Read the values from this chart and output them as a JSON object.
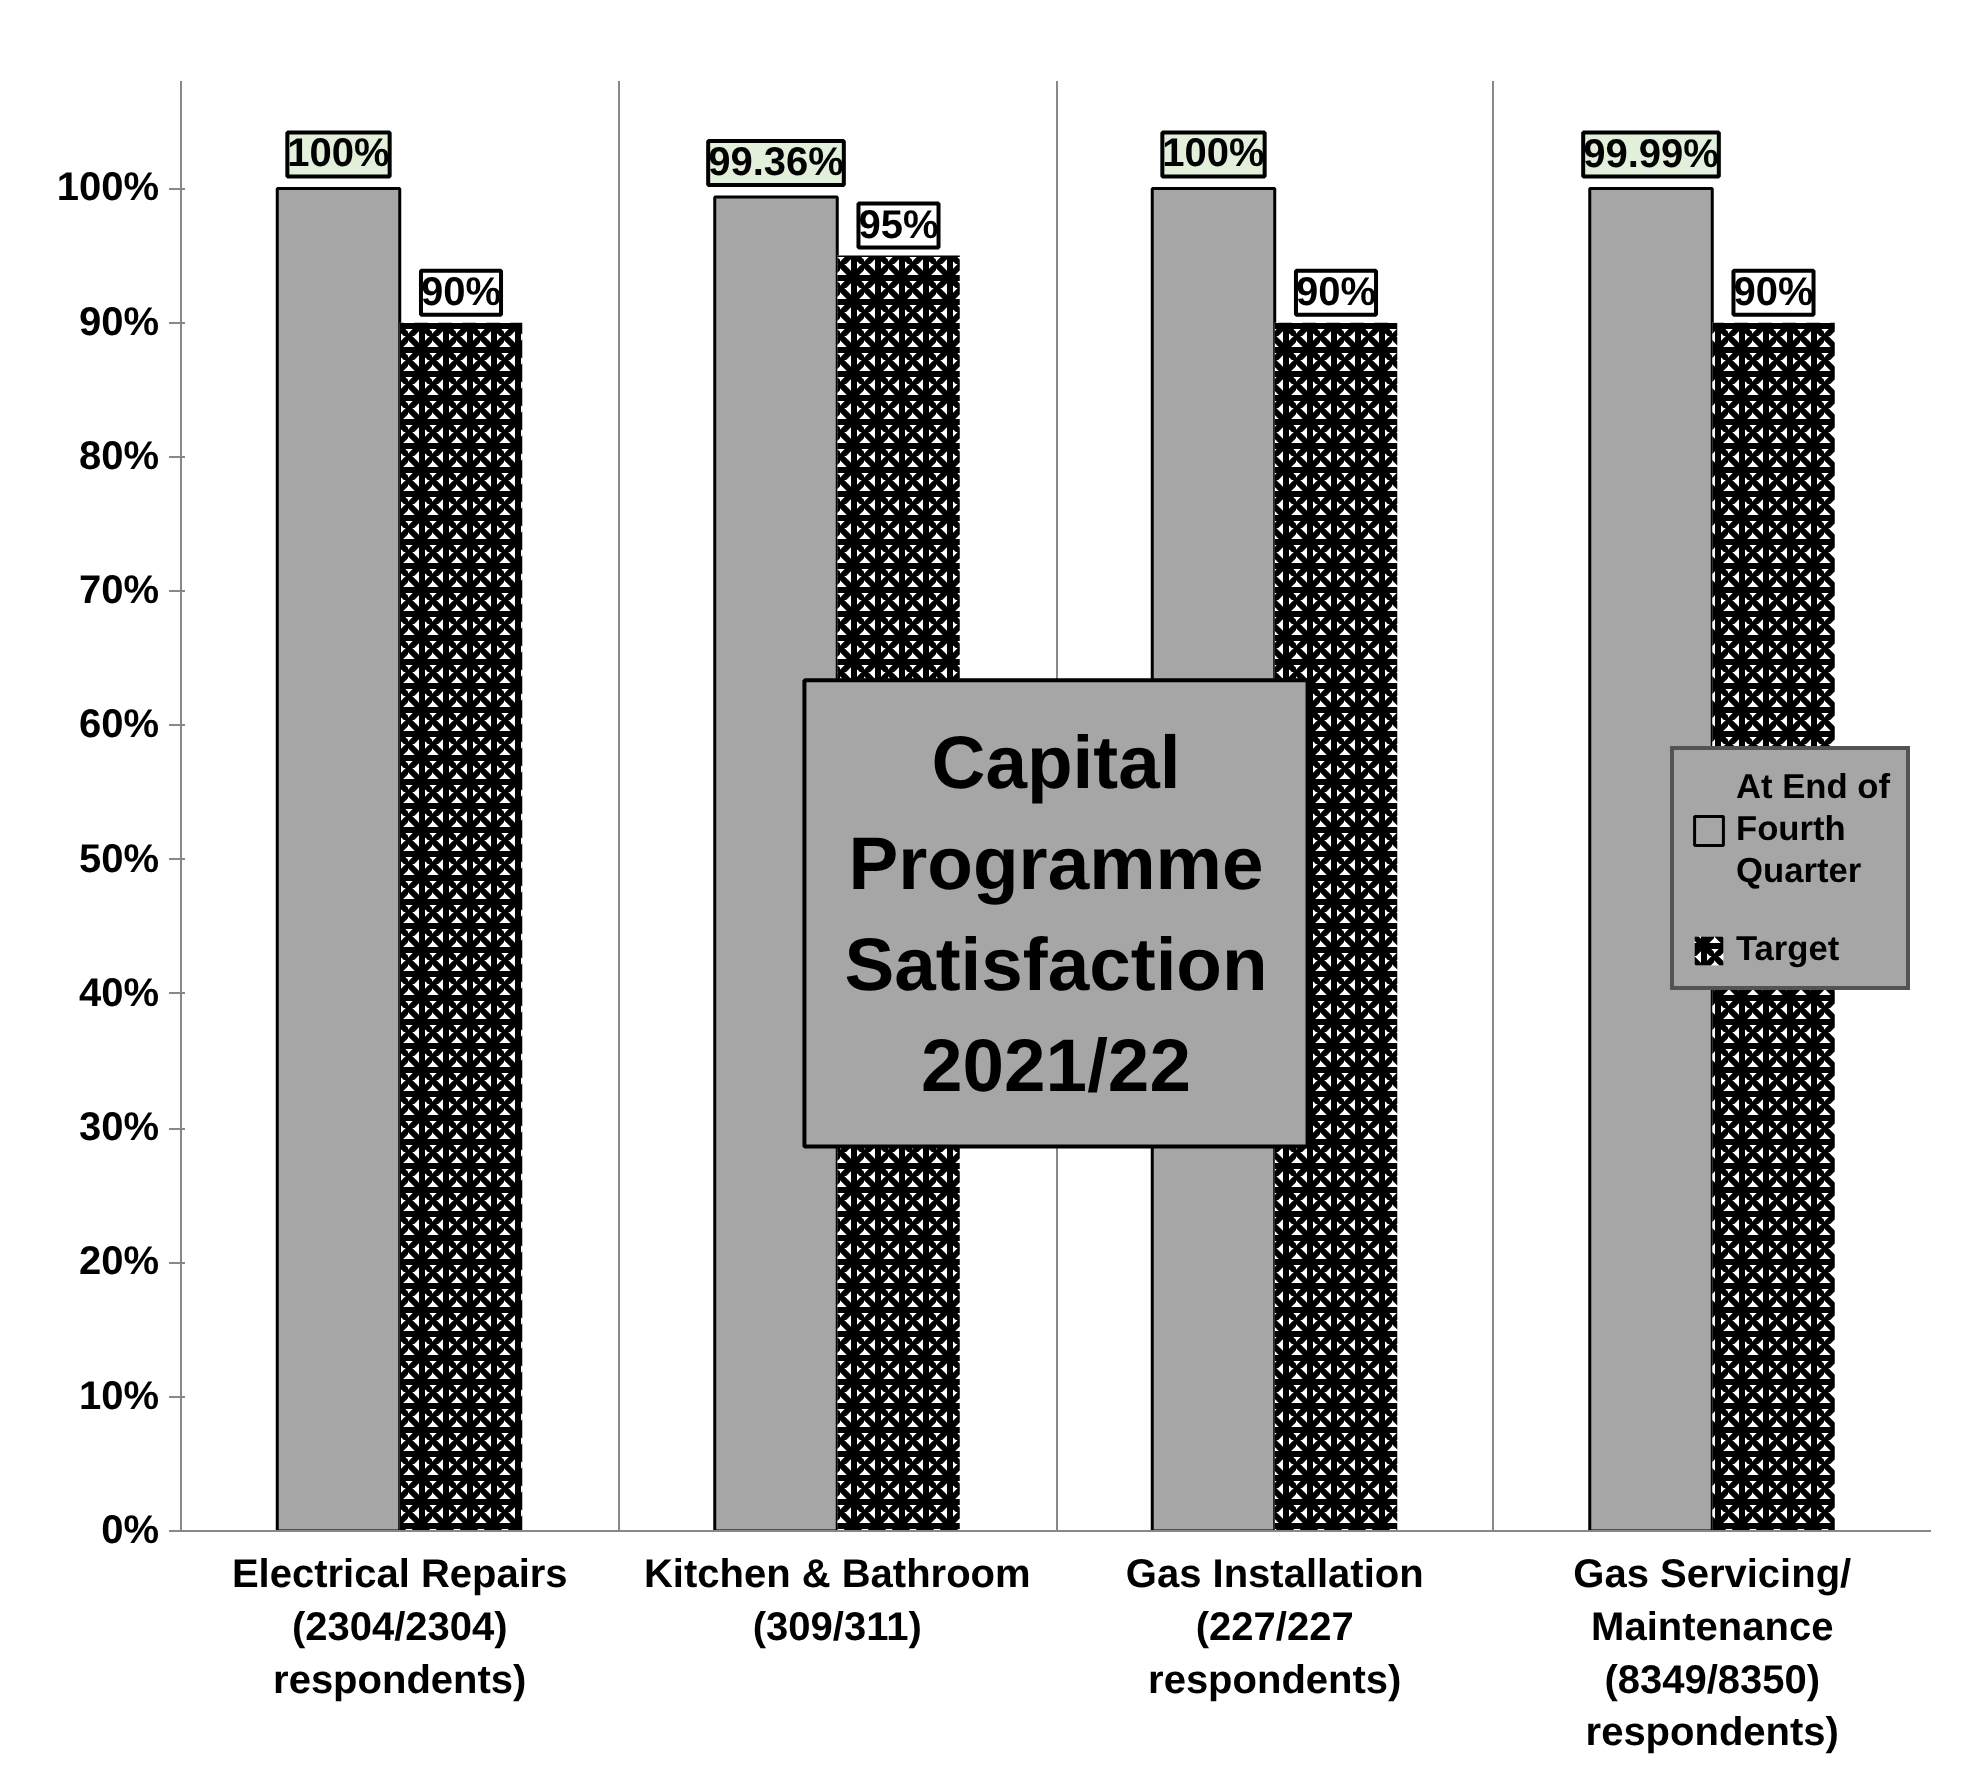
{
  "chart_data": {
    "type": "bar",
    "title": "Capital Programme Satisfaction 2021/22",
    "categories": [
      "Electrical Repairs (2304/2304) respondents)",
      "Kitchen & Bathroom (309/311)",
      "Gas Installation (227/227 respondents)",
      "Gas Servicing/ Maintenance (8349/8350) respondents)"
    ],
    "series": [
      {
        "name": "At End of Fourth Quarter",
        "color": "#a6a6a6",
        "values": [
          100,
          99.36,
          100,
          99.99
        ],
        "value_labels": [
          "100%",
          "99.36%",
          "100%",
          "99.99%"
        ]
      },
      {
        "name": "Target",
        "color": "#ffffff",
        "values": [
          90,
          95,
          90,
          90
        ],
        "value_labels": [
          "90%",
          "95%",
          "90%",
          "90%"
        ]
      }
    ],
    "ylim": [
      0,
      108
    ],
    "yticks": [
      {
        "value": 0,
        "label": "0%"
      },
      {
        "value": 10,
        "label": "10%"
      },
      {
        "value": 20,
        "label": "20%"
      },
      {
        "value": 30,
        "label": "30%"
      },
      {
        "value": 40,
        "label": "40%"
      },
      {
        "value": 50,
        "label": "50%"
      },
      {
        "value": 60,
        "label": "60%"
      },
      {
        "value": 70,
        "label": "70%"
      },
      {
        "value": 80,
        "label": "80%"
      },
      {
        "value": 90,
        "label": "90%"
      },
      {
        "value": 100,
        "label": "100%"
      }
    ],
    "legend": "right",
    "grid": "x"
  }
}
